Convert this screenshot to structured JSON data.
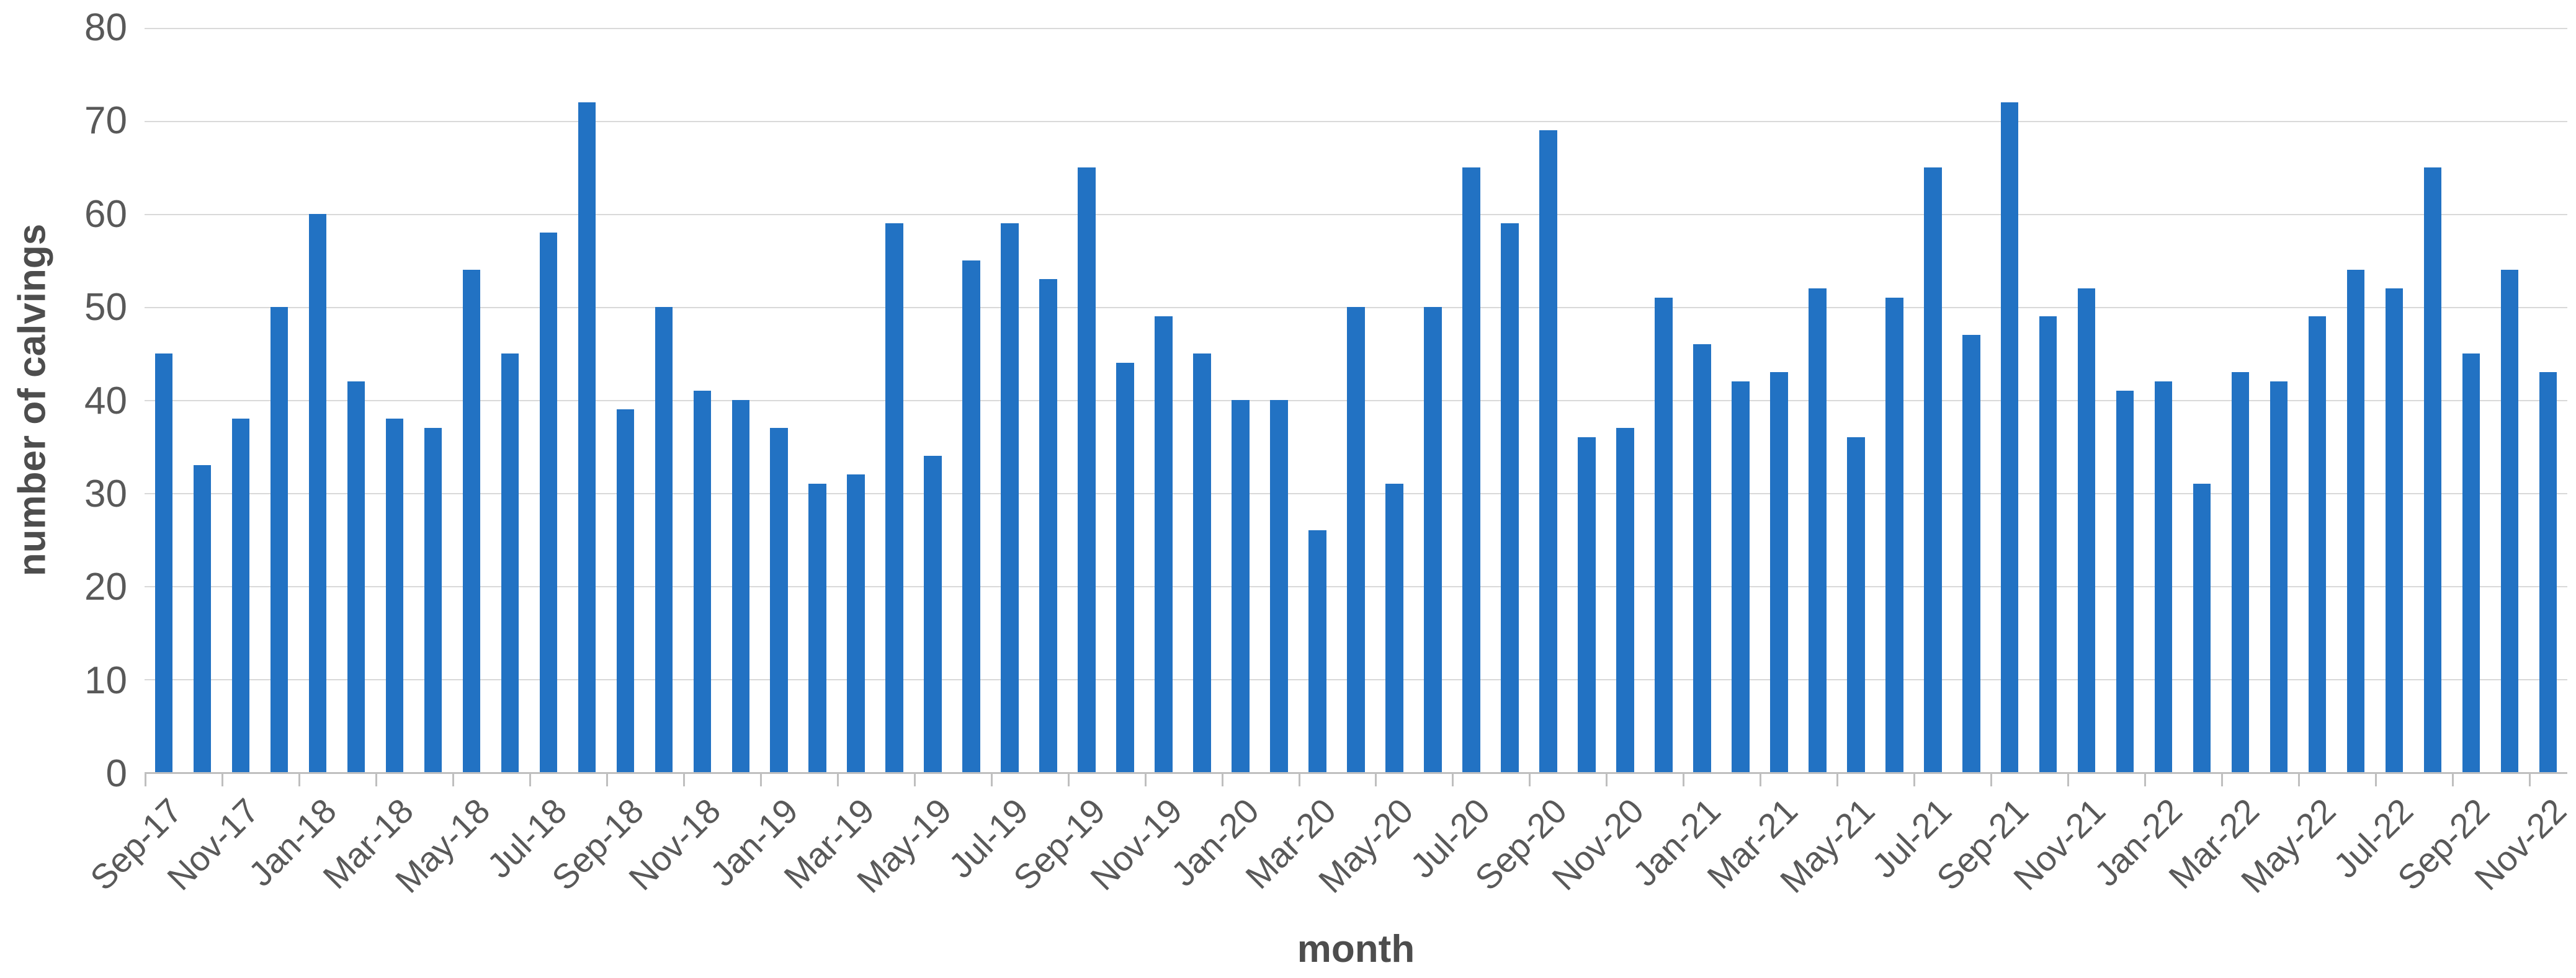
{
  "chart_data": {
    "type": "bar",
    "title": "",
    "xlabel": "month",
    "ylabel": "number of calvings",
    "ylim": [
      0,
      80
    ],
    "yticks": [
      0,
      10,
      20,
      30,
      40,
      50,
      60,
      70,
      80
    ],
    "x_label_every": 2,
    "grid": "horizontal",
    "legend": "none",
    "bar_color": "#2272c3",
    "gridline_color": "#d9d9d9",
    "axis_line_color": "#bfbfbf",
    "tick_text_color": "#595959",
    "title_text_color": "#4d4d4d",
    "categories": [
      "Sep-17",
      "Oct-17",
      "Nov-17",
      "Dec-17",
      "Jan-18",
      "Feb-18",
      "Mar-18",
      "Apr-18",
      "May-18",
      "Jun-18",
      "Jul-18",
      "Aug-18",
      "Sep-18",
      "Oct-18",
      "Nov-18",
      "Dec-18",
      "Jan-19",
      "Feb-19",
      "Mar-19",
      "Apr-19",
      "May-19",
      "Jun-19",
      "Jul-19",
      "Aug-19",
      "Sep-19",
      "Oct-19",
      "Nov-19",
      "Dec-19",
      "Jan-20",
      "Feb-20",
      "Mar-20",
      "Apr-20",
      "May-20",
      "Jun-20",
      "Jul-20",
      "Aug-20",
      "Sep-20",
      "Oct-20",
      "Nov-20",
      "Dec-20",
      "Jan-21",
      "Feb-21",
      "Mar-21",
      "Apr-21",
      "May-21",
      "Jun-21",
      "Jul-21",
      "Aug-21",
      "Sep-21",
      "Oct-21",
      "Nov-21",
      "Dec-21",
      "Jan-22",
      "Feb-22",
      "Mar-22",
      "Apr-22",
      "May-22",
      "Jun-22",
      "Jul-22",
      "Aug-22",
      "Sep-22",
      "Oct-22",
      "Nov-22"
    ],
    "values": [
      45,
      33,
      38,
      50,
      60,
      42,
      38,
      37,
      54,
      45,
      58,
      72,
      39,
      50,
      41,
      40,
      37,
      31,
      32,
      59,
      34,
      55,
      59,
      53,
      65,
      44,
      49,
      45,
      40,
      40,
      26,
      50,
      31,
      50,
      65,
      59,
      69,
      36,
      37,
      51,
      46,
      42,
      43,
      52,
      36,
      51,
      65,
      47,
      72,
      49,
      52,
      41,
      42,
      31,
      43,
      42,
      49,
      54,
      52,
      65,
      45,
      54,
      43
    ]
  }
}
